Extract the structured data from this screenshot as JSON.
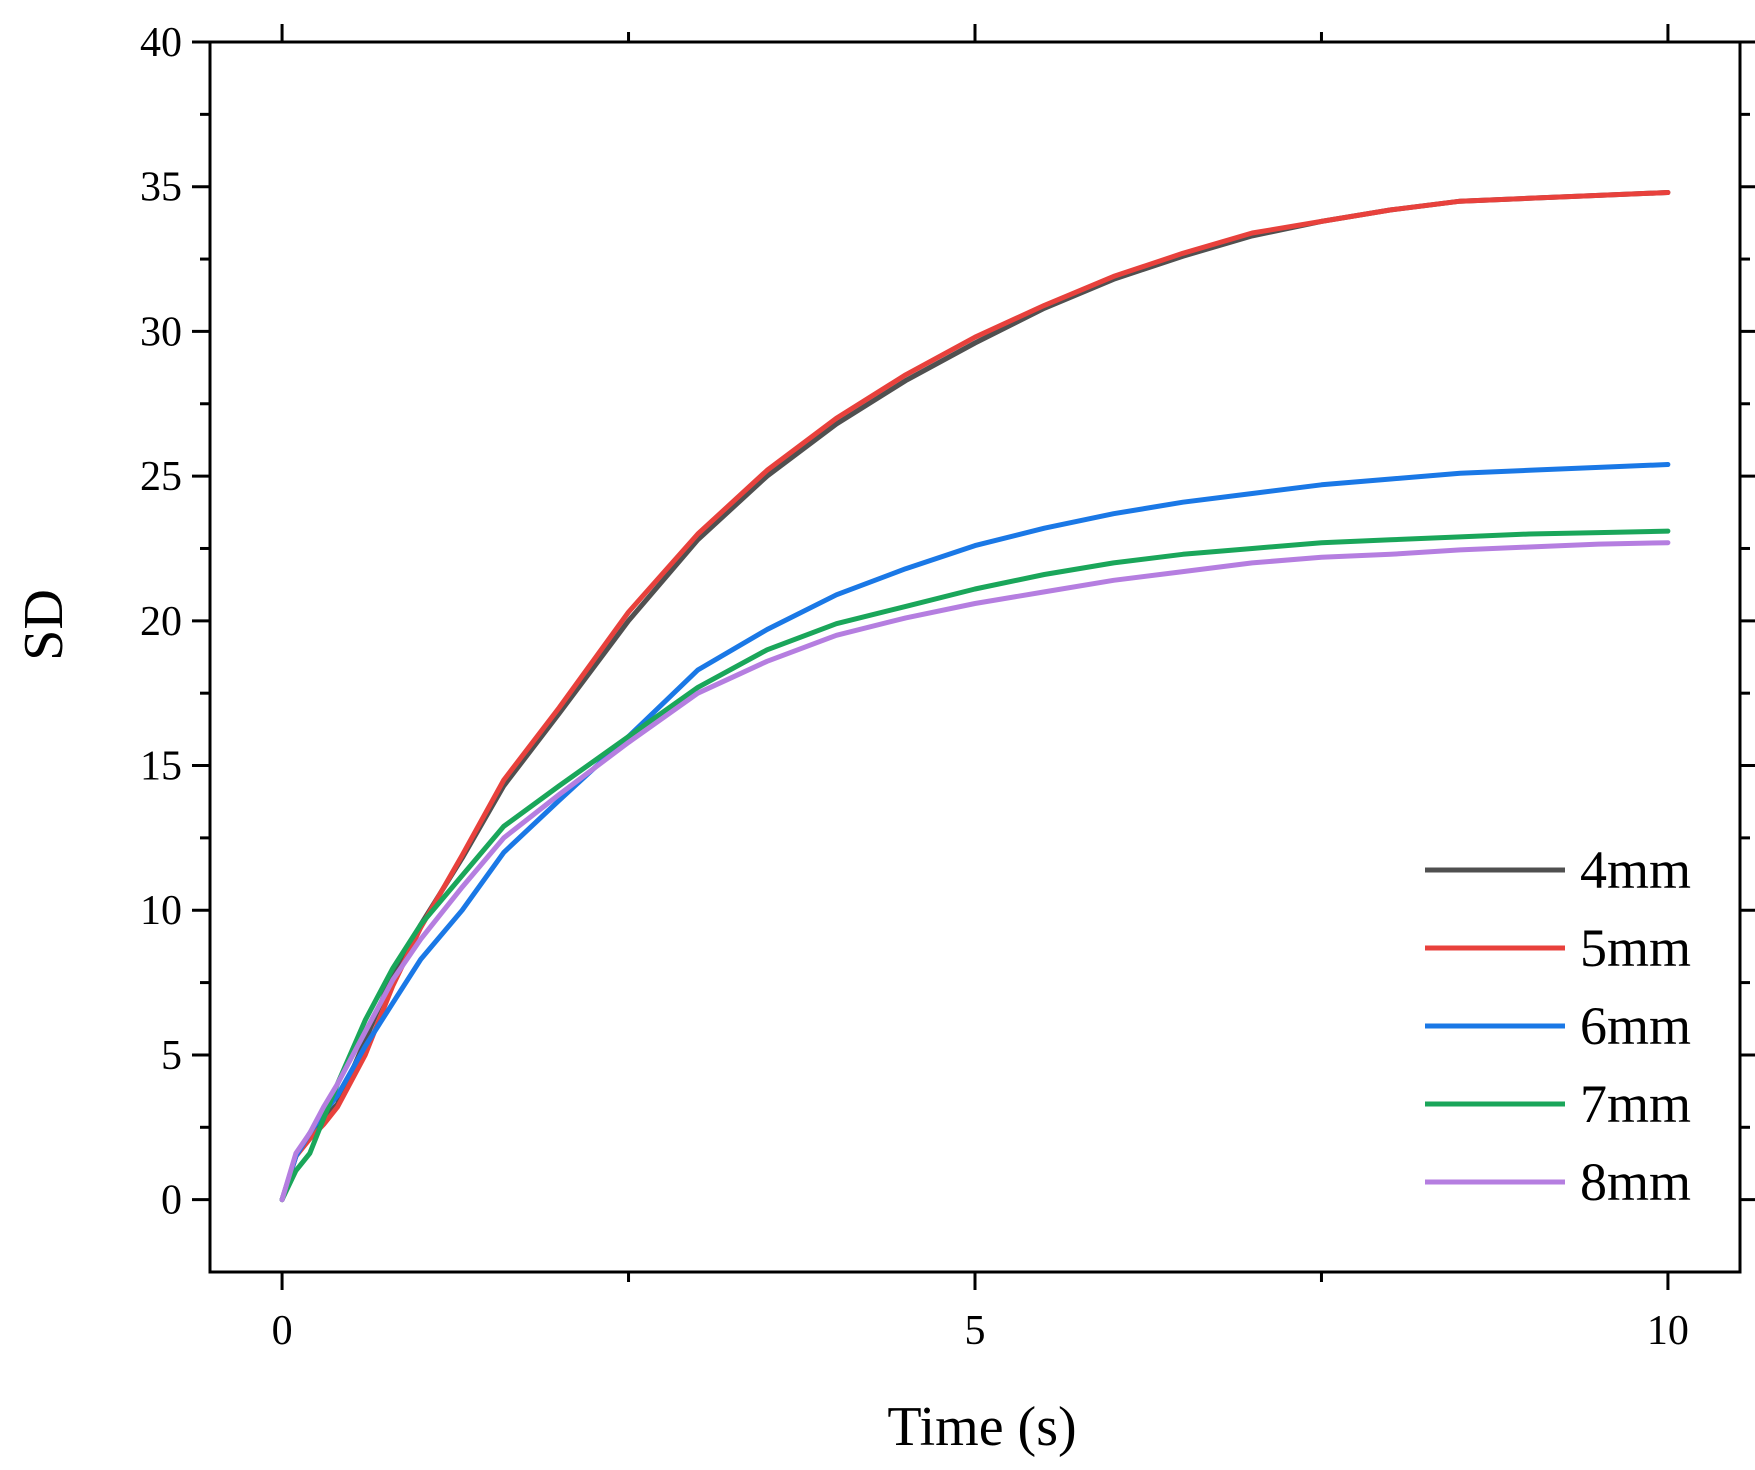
{
  "chart_data": {
    "type": "line",
    "title": "",
    "xlabel": "Time (s)",
    "ylabel": "SD",
    "xlim": [
      -0.52,
      10.52
    ],
    "ylim": [
      -2.5,
      40
    ],
    "xticks": [
      0,
      5,
      10
    ],
    "yticks": [
      0,
      5,
      10,
      15,
      20,
      25,
      30,
      35,
      40
    ],
    "x_minor_step": 2.5,
    "y_minor_step": 2.5,
    "legend_position": "bottom-right",
    "grid": false,
    "series": [
      {
        "name": "4mm",
        "color": "#505050",
        "x": [
          0,
          0.1,
          0.2,
          0.3,
          0.4,
          0.6,
          0.8,
          1.0,
          1.3,
          1.6,
          2.0,
          2.5,
          3.0,
          3.5,
          4.0,
          4.5,
          5.0,
          5.5,
          6.0,
          6.5,
          7.0,
          7.5,
          8.0,
          8.5,
          9.0,
          9.5,
          10.0
        ],
        "y": [
          0,
          1.5,
          2.2,
          2.8,
          3.3,
          5.5,
          7.8,
          9.5,
          11.8,
          14.3,
          16.8,
          20.0,
          22.8,
          25.0,
          26.8,
          28.3,
          29.6,
          30.8,
          31.8,
          32.6,
          33.3,
          33.8,
          34.2,
          34.5,
          34.6,
          34.7,
          34.8
        ]
      },
      {
        "name": "5mm",
        "color": "#e8413c",
        "x": [
          0,
          0.1,
          0.2,
          0.3,
          0.4,
          0.6,
          0.8,
          1.0,
          1.3,
          1.6,
          2.0,
          2.5,
          3.0,
          3.5,
          4.0,
          4.5,
          5.0,
          5.5,
          6.0,
          6.5,
          7.0,
          7.5,
          8.0,
          8.5,
          9.0,
          9.5,
          10.0
        ],
        "y": [
          0,
          1.5,
          2.1,
          2.6,
          3.2,
          5.0,
          7.4,
          9.4,
          11.9,
          14.5,
          17.0,
          20.3,
          23.0,
          25.2,
          27.0,
          28.5,
          29.8,
          30.9,
          31.9,
          32.7,
          33.4,
          33.8,
          34.2,
          34.5,
          34.6,
          34.7,
          34.8
        ]
      },
      {
        "name": "6mm",
        "color": "#1a78e6",
        "x": [
          0,
          0.1,
          0.2,
          0.3,
          0.4,
          0.6,
          0.8,
          1.0,
          1.3,
          1.6,
          2.0,
          2.5,
          3.0,
          3.5,
          4.0,
          4.5,
          5.0,
          5.5,
          6.0,
          6.5,
          7.0,
          7.5,
          8.0,
          8.5,
          9.0,
          9.5,
          10.0
        ],
        "y": [
          0,
          1.5,
          2.3,
          3.0,
          3.6,
          5.3,
          6.8,
          8.3,
          10.0,
          12.0,
          13.8,
          16.0,
          18.3,
          19.7,
          20.9,
          21.8,
          22.6,
          23.2,
          23.7,
          24.1,
          24.4,
          24.7,
          24.9,
          25.1,
          25.2,
          25.3,
          25.4
        ]
      },
      {
        "name": "7mm",
        "color": "#1aa65a",
        "x": [
          0,
          0.1,
          0.2,
          0.3,
          0.4,
          0.6,
          0.8,
          1.0,
          1.3,
          1.6,
          2.0,
          2.5,
          3.0,
          3.5,
          4.0,
          4.5,
          5.0,
          5.5,
          6.0,
          6.5,
          7.0,
          7.5,
          8.0,
          8.5,
          9.0,
          9.5,
          10.0
        ],
        "y": [
          0,
          1.0,
          1.6,
          2.8,
          4.0,
          6.2,
          8.0,
          9.5,
          11.2,
          12.9,
          14.3,
          16.0,
          17.7,
          19.0,
          19.9,
          20.5,
          21.1,
          21.6,
          22.0,
          22.3,
          22.5,
          22.7,
          22.8,
          22.9,
          23.0,
          23.05,
          23.1
        ]
      },
      {
        "name": "8mm",
        "color": "#b57ee0",
        "x": [
          0,
          0.1,
          0.2,
          0.3,
          0.4,
          0.6,
          0.8,
          1.0,
          1.3,
          1.6,
          2.0,
          2.5,
          3.0,
          3.5,
          4.0,
          4.5,
          5.0,
          5.5,
          6.0,
          6.5,
          7.0,
          7.5,
          8.0,
          8.5,
          9.0,
          9.5,
          10.0
        ],
        "y": [
          0,
          1.6,
          2.3,
          3.2,
          4.0,
          5.8,
          7.6,
          9.0,
          10.8,
          12.5,
          14.0,
          15.8,
          17.5,
          18.6,
          19.5,
          20.1,
          20.6,
          21.0,
          21.4,
          21.7,
          22.0,
          22.2,
          22.3,
          22.45,
          22.55,
          22.65,
          22.7
        ]
      }
    ]
  }
}
